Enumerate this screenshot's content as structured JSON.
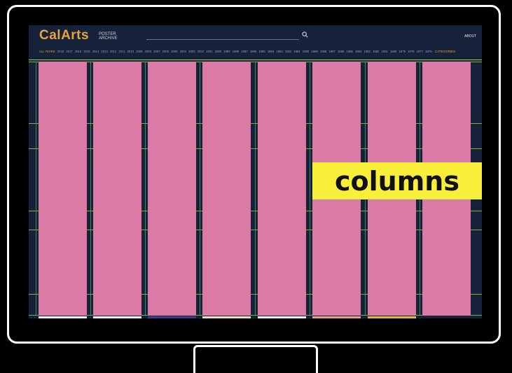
{
  "app": {
    "logo": "CalArts",
    "logo_sub_line1": "POSTER",
    "logo_sub_line2": "ARCHIVE",
    "about": "ABOUT",
    "categories": "CATEGORIES"
  },
  "years": [
    "ALL YEARS",
    "2018",
    "2017",
    "2016",
    "2015",
    "2014",
    "2013",
    "2012",
    "2011",
    "2010",
    "2009",
    "2008",
    "2007",
    "2006",
    "2005",
    "2004",
    "2003",
    "2002",
    "2001",
    "2000",
    "1999",
    "1998",
    "1997",
    "1996",
    "1995",
    "1994",
    "1993",
    "1992",
    "1991",
    "1990",
    "1989",
    "1988",
    "1987",
    "1986",
    "1985",
    "1984",
    "1983",
    "1982",
    "1981",
    "1980",
    "1979",
    "1978",
    "1977",
    "1976"
  ],
  "overlay_label": "columns",
  "colors": {
    "background": "#16223a",
    "column": "#dc7aa6",
    "grid": "#7ed04a",
    "accent": "#e8a33b",
    "label_bg": "#f8ef3a"
  },
  "icons": {
    "search": "search-icon"
  }
}
